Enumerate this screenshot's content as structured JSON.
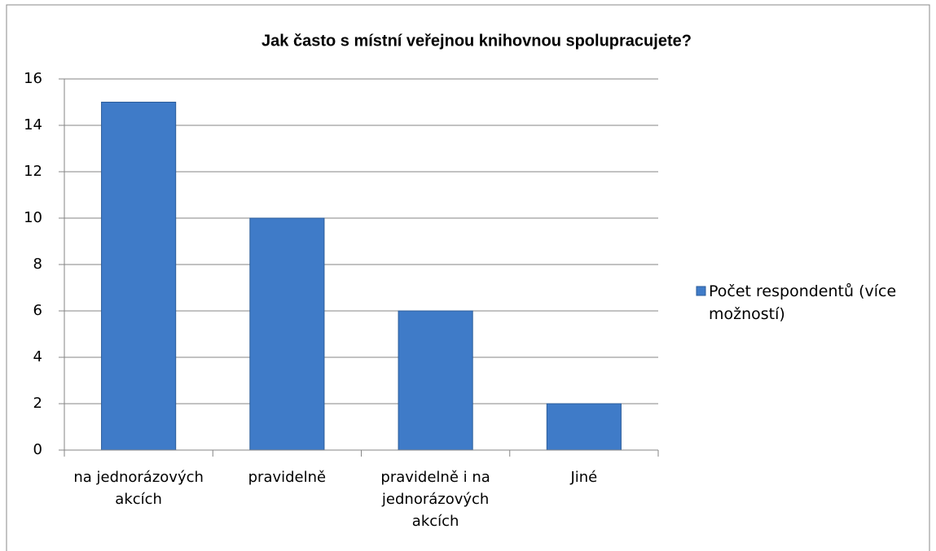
{
  "chart_data": {
    "type": "bar",
    "title": "Jak často s místní veřejnou knihovnou spolupracujete?",
    "categories": [
      "na jednorázových akcích",
      "pravidelně",
      "pravidelně i na jednorázových akcích",
      "Jiné"
    ],
    "series": [
      {
        "name": "Počet respondentů (více možností)",
        "color": "#3f7bc8",
        "values": [
          15,
          10,
          6,
          2
        ]
      }
    ],
    "ylim": [
      0,
      16
    ],
    "yticks": [
      0,
      2,
      4,
      6,
      8,
      10,
      12,
      14,
      16
    ],
    "grid": true,
    "legend": "right"
  }
}
